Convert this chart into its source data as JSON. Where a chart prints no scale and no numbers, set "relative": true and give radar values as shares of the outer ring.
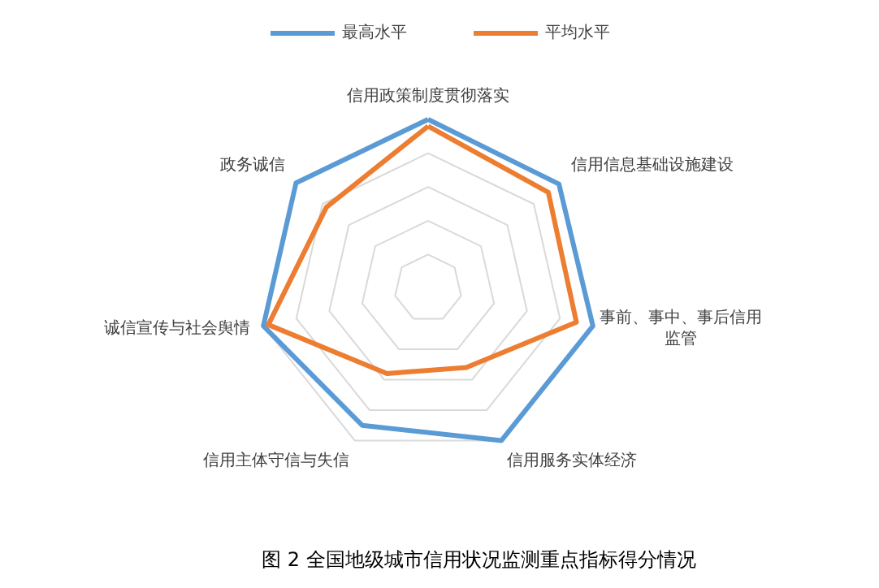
{
  "chart_data": {
    "type": "radar",
    "title": "图 2 全国地级城市信用状况监测重点指标得分情况",
    "relative": true,
    "grid": true,
    "legend": "top",
    "categories": [
      "信用政策制度贯彻落实",
      "信用信息基础设施建设",
      "事前、事中、事后信用监管",
      "信用服务实体经济",
      "信用主体守信与失信",
      "诚信宣传与社会舆情",
      "政务诚信"
    ],
    "series": [
      {
        "name": "最高水平",
        "color": "#5b9bd5",
        "values": [
          1.0,
          0.99,
          1.0,
          1.0,
          0.9,
          1.0,
          1.0
        ]
      },
      {
        "name": "平均水平",
        "color": "#ed7d31",
        "values": [
          0.96,
          0.91,
          0.9,
          0.52,
          0.56,
          0.97,
          0.77
        ]
      }
    ]
  }
}
